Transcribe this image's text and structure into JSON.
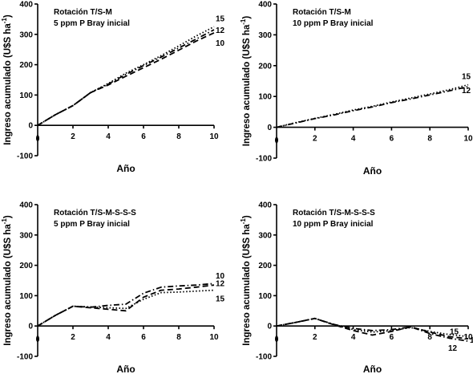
{
  "chart_data": [
    {
      "type": "line",
      "title": "Rotación T/S-M",
      "subtitle": "5 ppm P Bray inicial",
      "xlabel": "Año",
      "ylabel": "Ingreso acumulado (U$S ha-1)",
      "xlim": [
        0,
        10
      ],
      "ylim": [
        -100,
        400
      ],
      "xticks": [
        "2",
        "4",
        "6",
        "8",
        "10"
      ],
      "yticks": [
        "-100",
        "0",
        "100",
        "200",
        "300",
        "400"
      ],
      "grid": false,
      "x": [
        0,
        1,
        2,
        3,
        4,
        5,
        6,
        7,
        8,
        9,
        10
      ],
      "series": [
        {
          "name": "15",
          "dash": "dot",
          "values": [
            0,
            35,
            65,
            108,
            138,
            172,
            200,
            230,
            262,
            295,
            325
          ]
        },
        {
          "name": "12",
          "dash": "dashdot",
          "values": [
            0,
            35,
            65,
            108,
            136,
            168,
            197,
            225,
            255,
            285,
            315
          ]
        },
        {
          "name": "10",
          "dash": "dash",
          "values": [
            0,
            35,
            65,
            108,
            133,
            162,
            190,
            218,
            248,
            278,
            305
          ]
        }
      ]
    },
    {
      "type": "line",
      "title": "Rotación T/S-M",
      "subtitle": "10 ppm P Bray inicial",
      "xlabel": "Año",
      "ylabel": "Ingreso acumulado (U$S ha-1)",
      "xlim": [
        0,
        10
      ],
      "ylim": [
        -100,
        400
      ],
      "xticks": [
        "2",
        "4",
        "6",
        "8",
        "10"
      ],
      "yticks": [
        "-100",
        "0",
        "100",
        "200",
        "300",
        "400"
      ],
      "grid": false,
      "x": [
        0,
        1,
        2,
        3,
        4,
        5,
        6,
        7,
        8,
        9,
        10
      ],
      "series": [
        {
          "name": "15",
          "dash": "dot",
          "values": [
            0,
            15,
            29,
            42,
            56,
            68,
            82,
            95,
            108,
            122,
            138
          ]
        },
        {
          "name": "12",
          "dash": "dashdot",
          "values": [
            0,
            14,
            28,
            40,
            54,
            66,
            80,
            92,
            105,
            118,
            132
          ]
        }
      ]
    },
    {
      "type": "line",
      "title": "Rotación T/S-M-S-S-S",
      "subtitle": "5 ppm P Bray inicial",
      "xlabel": "Año",
      "ylabel": "Ingreso acumulado (U$S ha-1)",
      "xlim": [
        0,
        10
      ],
      "ylim": [
        -100,
        400
      ],
      "xticks": [
        "2",
        "4",
        "6",
        "8",
        "10"
      ],
      "yticks": [
        "-100",
        "0",
        "100",
        "200",
        "300",
        "400"
      ],
      "grid": false,
      "x": [
        0,
        1,
        2,
        3,
        4,
        5,
        6,
        7,
        8,
        9,
        10
      ],
      "series": [
        {
          "name": "10",
          "dash": "dash",
          "values": [
            0,
            35,
            65,
            60,
            55,
            50,
            95,
            118,
            122,
            128,
            135
          ]
        },
        {
          "name": "12",
          "dash": "dashdot",
          "values": [
            0,
            35,
            65,
            62,
            68,
            72,
            108,
            128,
            132,
            135,
            140
          ]
        },
        {
          "name": "15",
          "dash": "dot",
          "values": [
            0,
            35,
            65,
            63,
            60,
            58,
            88,
            110,
            112,
            115,
            118
          ]
        }
      ]
    },
    {
      "type": "line",
      "title": "Rotación T/S-M-S-S-S",
      "subtitle": "10 ppm P Bray inicial",
      "xlabel": "Año",
      "ylabel": "Ingreso acumulado (U$S ha-1)",
      "xlim": [
        0,
        10
      ],
      "ylim": [
        -100,
        400
      ],
      "xticks": [
        "2",
        "4",
        "6",
        "8",
        "10"
      ],
      "yticks": [
        "-100",
        "0",
        "100",
        "200",
        "300",
        "400"
      ],
      "grid": false,
      "x": [
        0,
        1,
        2,
        3,
        4,
        5,
        6,
        7,
        8,
        9,
        10
      ],
      "series": [
        {
          "name": "15",
          "dash": "dot",
          "values": [
            0,
            12,
            25,
            5,
            -12,
            -20,
            -15,
            -5,
            -18,
            -28,
            -35
          ]
        },
        {
          "name": "12",
          "dash": "dashdot",
          "values": [
            0,
            12,
            25,
            5,
            -8,
            -15,
            -12,
            -3,
            -25,
            -40,
            -50
          ]
        },
        {
          "name": "10",
          "dash": "dash",
          "values": [
            0,
            12,
            25,
            4,
            -15,
            -30,
            -18,
            -3,
            -20,
            -35,
            -42
          ]
        }
      ]
    }
  ]
}
